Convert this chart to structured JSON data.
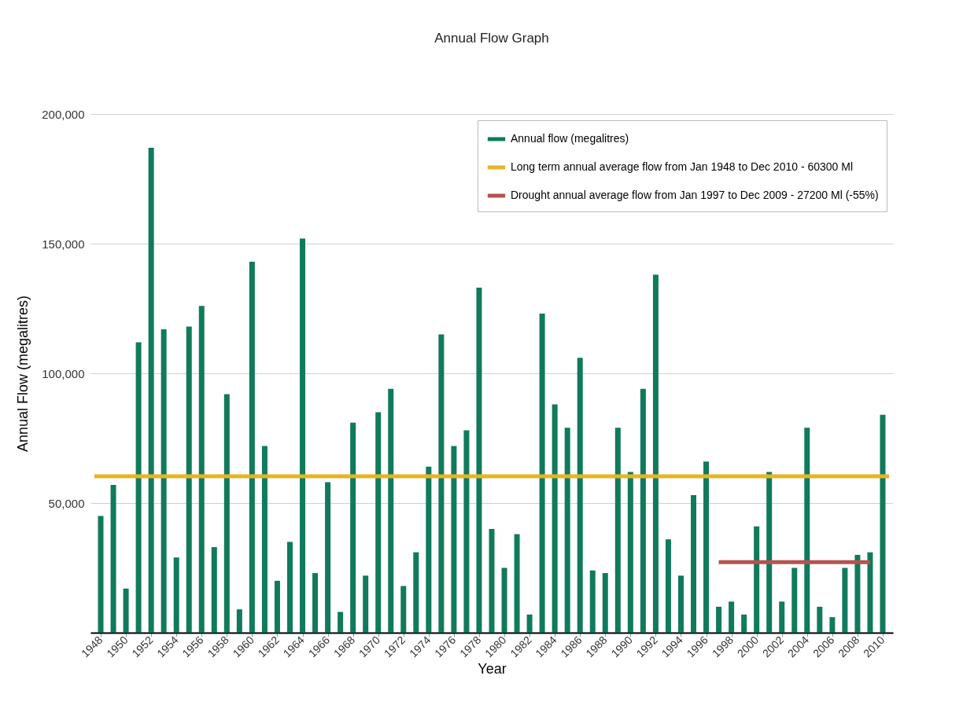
{
  "chart_data": {
    "type": "bar",
    "title": "Annual Flow Graph",
    "xlabel": "Year",
    "ylabel": "Annual Flow (megalitres)",
    "x": [
      1948,
      1949,
      1950,
      1951,
      1952,
      1953,
      1954,
      1955,
      1956,
      1957,
      1958,
      1959,
      1960,
      1961,
      1962,
      1963,
      1964,
      1965,
      1966,
      1967,
      1968,
      1969,
      1970,
      1971,
      1972,
      1973,
      1974,
      1975,
      1976,
      1977,
      1978,
      1979,
      1980,
      1981,
      1982,
      1983,
      1984,
      1985,
      1986,
      1987,
      1988,
      1989,
      1990,
      1991,
      1992,
      1993,
      1994,
      1995,
      1996,
      1997,
      1998,
      1999,
      2000,
      2001,
      2002,
      2003,
      2004,
      2005,
      2006,
      2007,
      2008,
      2009,
      2010
    ],
    "series": [
      {
        "name": "Annual flow (megalitres)",
        "color": "#107a5c",
        "values": [
          45000,
          57000,
          17000,
          112000,
          187000,
          117000,
          29000,
          118000,
          126000,
          33000,
          92000,
          9000,
          143000,
          72000,
          20000,
          35000,
          152000,
          23000,
          58000,
          8000,
          81000,
          22000,
          85000,
          94000,
          18000,
          31000,
          64000,
          115000,
          72000,
          78000,
          133000,
          40000,
          25000,
          38000,
          7000,
          123000,
          88000,
          79000,
          106000,
          24000,
          23000,
          79000,
          62000,
          94000,
          138000,
          36000,
          22000,
          53000,
          66000,
          10000,
          12000,
          7000,
          41000,
          62000,
          12000,
          25000,
          79000,
          10000,
          6000,
          25000,
          30000,
          31000,
          84000
        ]
      },
      {
        "name": "Long term annual average flow from Jan 1948 to Dec 2010 - 60300 Ml",
        "type": "line",
        "color": "#e6b427",
        "x": [
          1947.5,
          2010.5
        ],
        "values": [
          60300,
          60300
        ]
      },
      {
        "name": "Drought annual average flow from Jan 1997 to Dec 2009 - 27200 Ml (-55%)",
        "type": "line",
        "color": "#b5524f",
        "x": [
          1997,
          2009
        ],
        "values": [
          27200,
          27200
        ]
      }
    ],
    "xlim": [
      1947.5,
      2010.5
    ],
    "xticks": [
      1948,
      1950,
      1952,
      1954,
      1956,
      1958,
      1960,
      1962,
      1964,
      1966,
      1968,
      1970,
      1972,
      1974,
      1976,
      1978,
      1980,
      1982,
      1984,
      1986,
      1988,
      1990,
      1992,
      1994,
      1996,
      1998,
      2000,
      2002,
      2004,
      2006,
      2008,
      2010
    ],
    "ylim": [
      0,
      200000
    ],
    "yticks": [
      {
        "value": 0,
        "label": null
      },
      {
        "value": 50000,
        "label": "50,000"
      },
      {
        "value": 100000,
        "label": "100,000"
      },
      {
        "value": 150000,
        "label": "150,000"
      },
      {
        "value": 200000,
        "label": "200,000"
      }
    ],
    "grid": "y",
    "legend": "top right"
  }
}
